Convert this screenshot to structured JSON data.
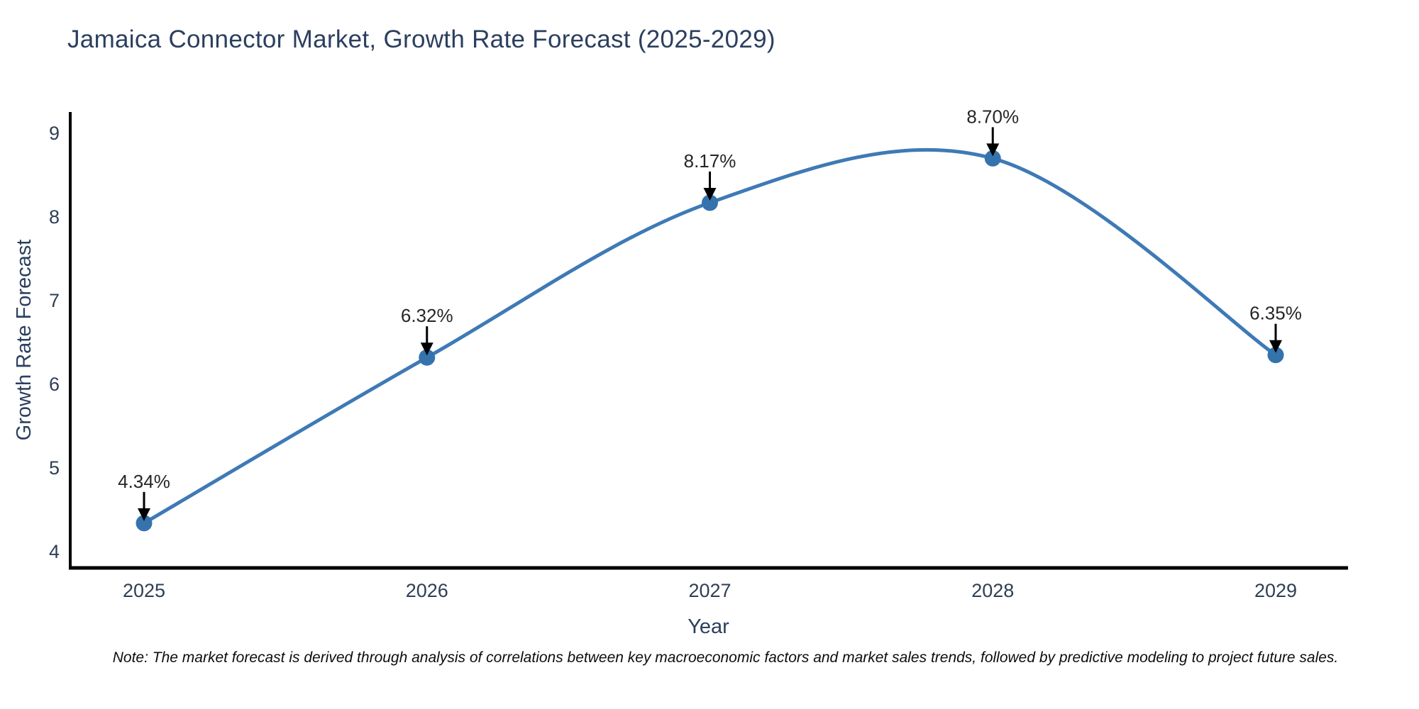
{
  "chart_data": {
    "type": "line",
    "title": "Jamaica Connector Market, Growth Rate Forecast (2025-2029)",
    "xlabel": "Year",
    "ylabel": "Growth Rate Forecast",
    "x": [
      2025,
      2026,
      2027,
      2028,
      2029
    ],
    "y": [
      4.34,
      6.32,
      8.17,
      8.7,
      6.35
    ],
    "point_labels": [
      "4.34%",
      "6.32%",
      "8.17%",
      "8.70%",
      "6.35%"
    ],
    "ylim": [
      4,
      9
    ],
    "y_ticks": [
      4,
      5,
      6,
      7,
      8,
      9
    ],
    "line_shape": "spline",
    "grid": false,
    "legend": "none",
    "colors": {
      "line": "#3e7ab5",
      "marker": "#3573ad",
      "annotation_text": "#262626",
      "annotation_arrow": "#000000",
      "axis_spine": "#000000",
      "tick_label": "#2e3f54",
      "axis_title": "#2b3f5e",
      "title": "#2b3f5e"
    }
  },
  "note": "Note: The market forecast is derived through analysis of correlations between key macroeconomic factors and market sales trends, followed by predictive modeling to project future sales."
}
